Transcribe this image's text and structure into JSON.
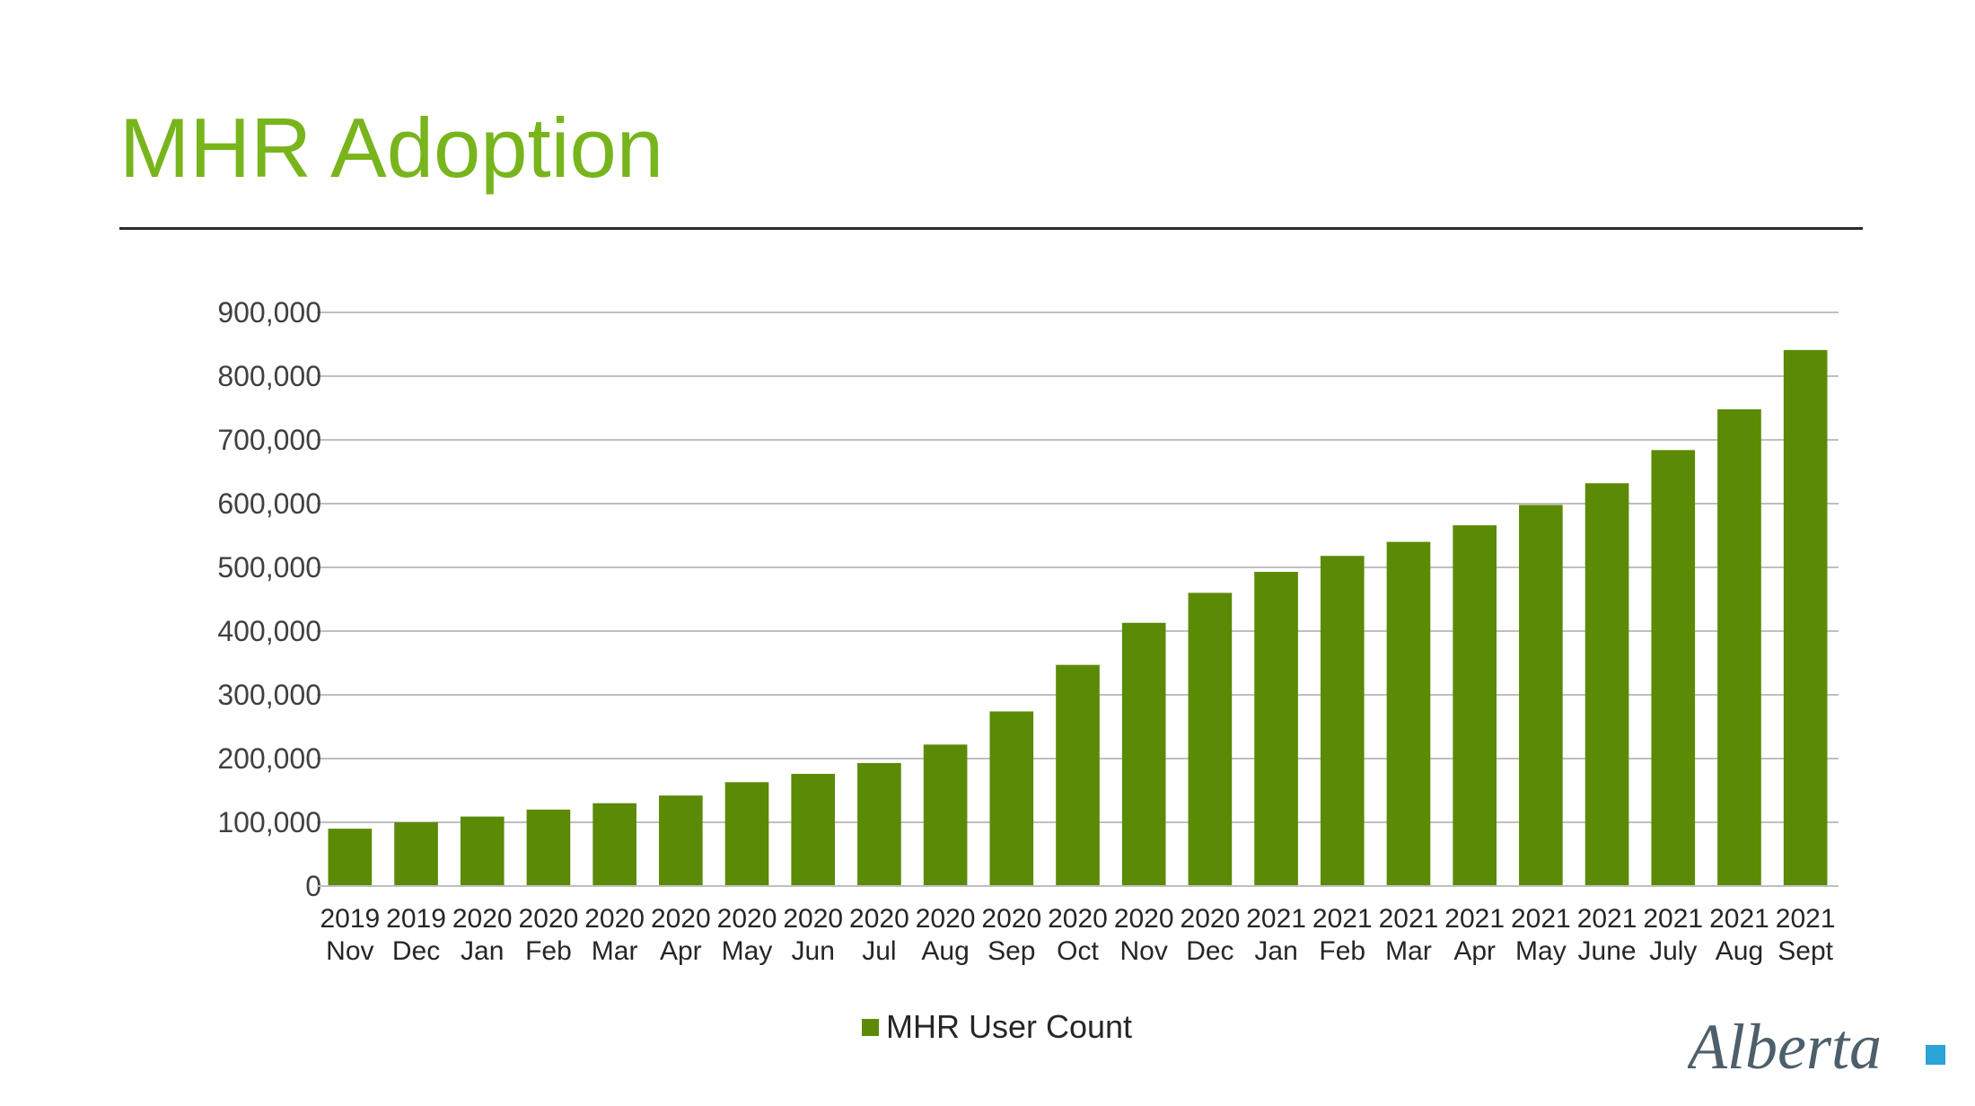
{
  "slide": {
    "title": "MHR Adoption"
  },
  "logo": {
    "text": "Alberta"
  },
  "colors": {
    "title": "#78b51c",
    "bar": "#5b8a05",
    "grid": "#bfbfbf",
    "logo_text": "#4d5f6b",
    "logo_square": "#2aa4d6"
  },
  "chart_data": {
    "type": "bar",
    "title": "",
    "xlabel": "",
    "ylabel": "",
    "ylim": [
      0,
      900000
    ],
    "yticks": [
      "0",
      "100,000",
      "200,000",
      "300,000",
      "400,000",
      "500,000",
      "600,000",
      "700,000",
      "800,000",
      "900,000"
    ],
    "grid": true,
    "legend_position": "bottom",
    "categories": [
      [
        "2019",
        "Nov"
      ],
      [
        "2019",
        "Dec"
      ],
      [
        "2020",
        "Jan"
      ],
      [
        "2020",
        "Feb"
      ],
      [
        "2020",
        "Mar"
      ],
      [
        "2020",
        "Apr"
      ],
      [
        "2020",
        "May"
      ],
      [
        "2020",
        "Jun"
      ],
      [
        "2020",
        "Jul"
      ],
      [
        "2020",
        "Aug"
      ],
      [
        "2020",
        "Sep"
      ],
      [
        "2020",
        "Oct"
      ],
      [
        "2020",
        "Nov"
      ],
      [
        "2020",
        "Dec"
      ],
      [
        "2021",
        "Jan"
      ],
      [
        "2021",
        "Feb"
      ],
      [
        "2021",
        "Mar"
      ],
      [
        "2021",
        "Apr"
      ],
      [
        "2021",
        "May"
      ],
      [
        "2021",
        "June"
      ],
      [
        "2021",
        "July"
      ],
      [
        "2021",
        "Aug"
      ],
      [
        "2021",
        "Sept"
      ]
    ],
    "series": [
      {
        "name": "MHR User Count",
        "values": [
          90000,
          100000,
          109000,
          120000,
          130000,
          142000,
          163000,
          176000,
          193000,
          222000,
          274000,
          347000,
          413000,
          460000,
          493000,
          518000,
          540000,
          566000,
          598000,
          632000,
          684000,
          748000,
          841000
        ]
      }
    ]
  }
}
